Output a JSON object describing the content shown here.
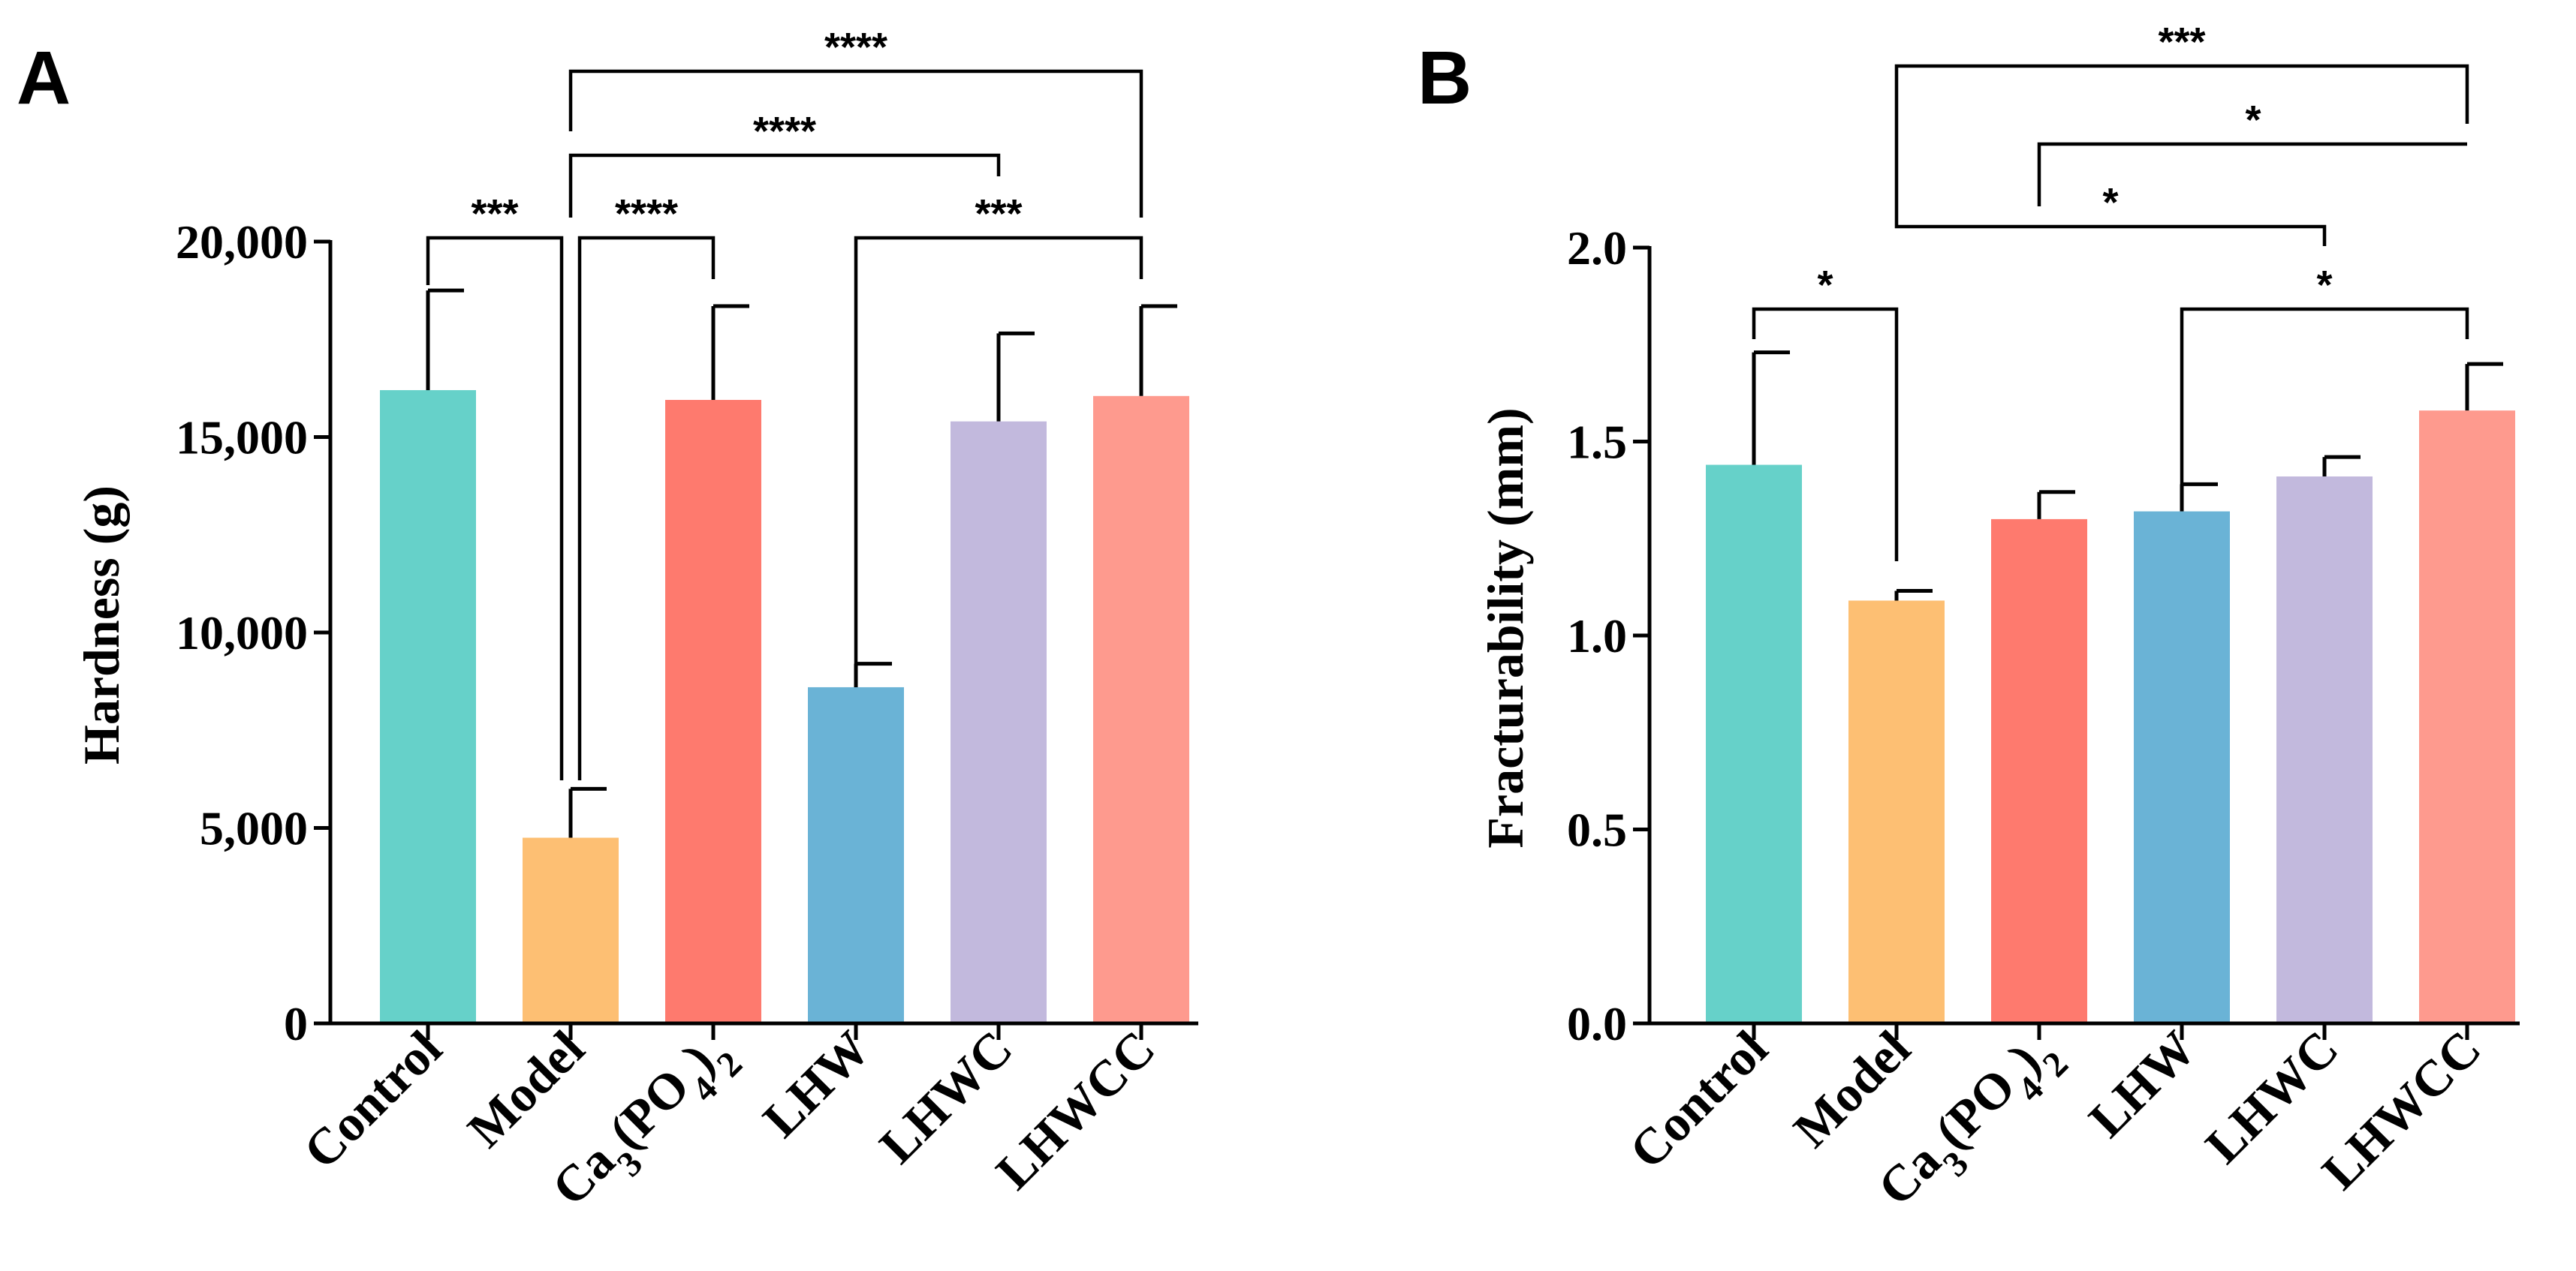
{
  "chart_data": [
    {
      "type": "bar",
      "panel": "A",
      "ylabel": "Hardness (g)",
      "ylim": [
        0,
        20000
      ],
      "yticks": [
        0,
        5000,
        10000,
        15000,
        20000
      ],
      "ytick_labels": [
        "0",
        "5,000",
        "10,000",
        "15,000",
        "20,000"
      ],
      "categories": [
        "Control",
        "Model",
        "Ca3(PO4)2",
        "LHW",
        "LHWC",
        "LHWCC"
      ],
      "values": [
        16200,
        4750,
        15950,
        8600,
        15400,
        16050
      ],
      "errors": [
        2550,
        1250,
        2400,
        600,
        2250,
        2300
      ],
      "colors": [
        "#66D1C9",
        "#FDBF73",
        "#FE7A6E",
        "#6AB3D6",
        "#C2B9DD",
        "#FE9A8E"
      ],
      "comparisons": [
        {
          "from": 0,
          "to": 1,
          "label": "***"
        },
        {
          "from": 1,
          "to": 2,
          "label": "****"
        },
        {
          "from": 3,
          "to": 5,
          "label": "***"
        },
        {
          "from": 1,
          "to": 4,
          "label": "****"
        },
        {
          "from": 1,
          "to": 5,
          "label": "****"
        }
      ]
    },
    {
      "type": "bar",
      "panel": "B",
      "ylabel": "Fracturability (mm)",
      "ylim": [
        0,
        2.0
      ],
      "yticks": [
        0,
        0.5,
        1.0,
        1.5,
        2.0
      ],
      "ytick_labels": [
        "0.0",
        "0.5",
        "1.0",
        "1.5",
        "2.0"
      ],
      "categories": [
        "Control",
        "Model",
        "Ca3(PO4)2",
        "LHW",
        "LHWC",
        "LHWCC"
      ],
      "values": [
        1.44,
        1.09,
        1.3,
        1.32,
        1.41,
        1.58
      ],
      "errors": [
        0.29,
        0.025,
        0.07,
        0.07,
        0.05,
        0.12
      ],
      "colors": [
        "#66D1C9",
        "#FDBF73",
        "#FE7A6E",
        "#6AB3D6",
        "#C2B9DD",
        "#FE9A8E"
      ],
      "comparisons": [
        {
          "from": 0,
          "to": 1,
          "label": "*"
        },
        {
          "from": 3,
          "to": 5,
          "label": "*"
        },
        {
          "from": 1,
          "to": 4,
          "label": "*"
        },
        {
          "from": 2,
          "to": 5,
          "label": "*"
        },
        {
          "from": 1,
          "to": 5,
          "label": "***"
        }
      ]
    }
  ]
}
